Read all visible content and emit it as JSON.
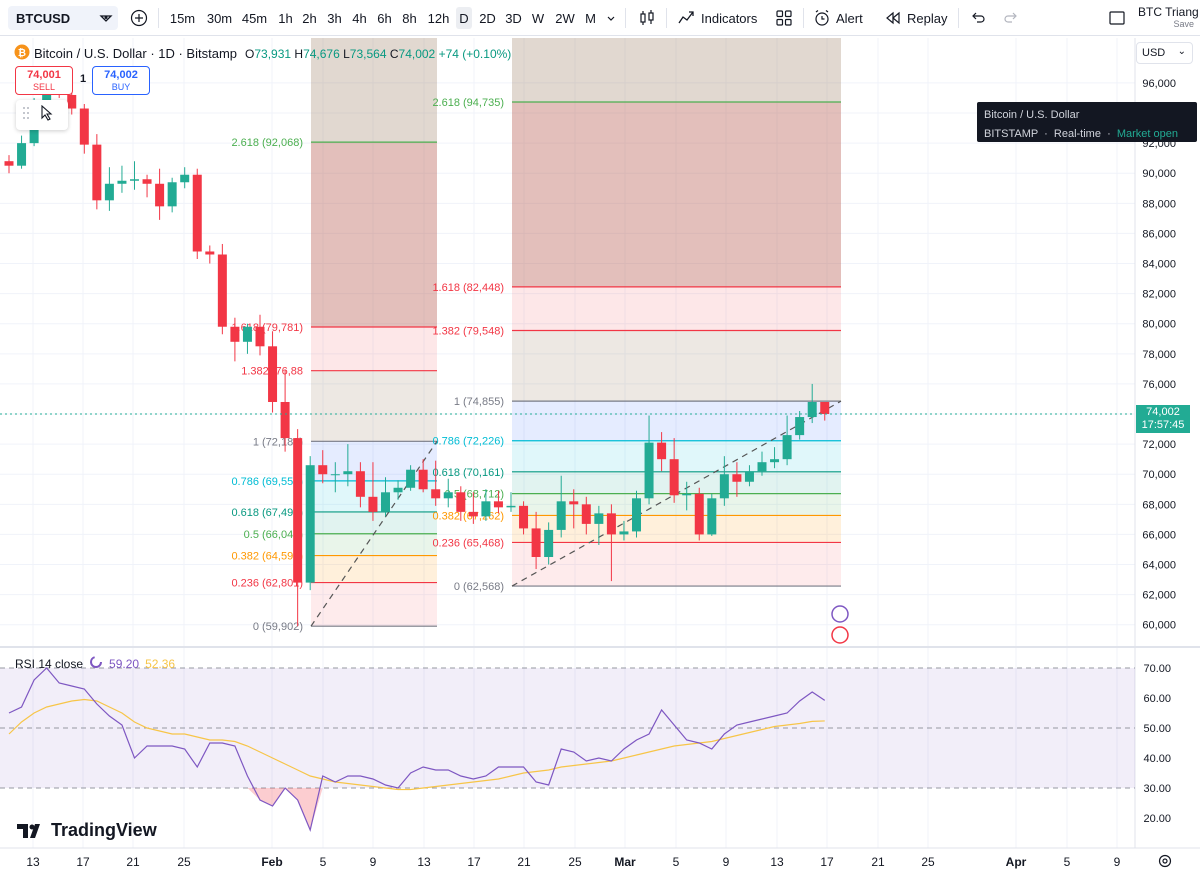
{
  "toolbar": {
    "symbol": "BTCUSD",
    "intervals": [
      "15m",
      "30m",
      "45m",
      "1h",
      "2h",
      "3h",
      "4h",
      "6h",
      "8h",
      "12h",
      "D",
      "2D",
      "3D",
      "W",
      "2W",
      "M"
    ],
    "active_interval": "D",
    "indicators_label": "Indicators",
    "alert_label": "Alert",
    "replay_label": "Replay",
    "layout_name": "BTC Triang",
    "save_label": "Save"
  },
  "legend": {
    "title": "Bitcoin / U.S. Dollar · 1D · Bitstamp",
    "o_label": "O",
    "o_value": "73,931",
    "h_label": "H",
    "h_value": "74,676",
    "l_label": "L",
    "l_value": "73,564",
    "c_label": "C",
    "c_value": "74,002",
    "change": "+74 (+0.10%)"
  },
  "trade": {
    "sell_price": "74,001",
    "sell_label": "SELL",
    "buy_price": "74,002",
    "buy_label": "BUY",
    "qty": "1"
  },
  "tooltip": {
    "line1": "Bitcoin / U.S. Dollar",
    "exchange": "BITSTAMP",
    "feed": "Real-time",
    "status": "Market open"
  },
  "currency": "USD",
  "last_price": {
    "price": "74,002",
    "countdown": "17:57:45"
  },
  "price_axis": [
    "96,000",
    "94,000",
    "92,000",
    "90,000",
    "88,000",
    "86,000",
    "84,000",
    "82,000",
    "80,000",
    "78,000",
    "76,000",
    "72,000",
    "70,000",
    "68,000",
    "66,000",
    "64,000",
    "62,000",
    "60,000"
  ],
  "rsi": {
    "label": "RSI 14 close",
    "value1": "59.20",
    "value2": "52.36",
    "axis": [
      "70.00",
      "60.00",
      "50.00",
      "40.00",
      "30.00",
      "20.00"
    ]
  },
  "time_axis": [
    "13",
    "17",
    "21",
    "25",
    "Feb",
    "5",
    "9",
    "13",
    "17",
    "21",
    "25",
    "Mar",
    "5",
    "9",
    "13",
    "17",
    "21",
    "25",
    "Apr",
    "5",
    "9"
  ],
  "brand": "TradingView",
  "fib1": {
    "levels": [
      {
        "label": "2.618 (92,068)",
        "price": 92068,
        "color": "#4caf50"
      },
      {
        "label": "1.618 (79,781)",
        "price": 79781,
        "color": "#f23645"
      },
      {
        "label": "1.382 (76,88",
        "price": 76880,
        "color": "#f23645"
      },
      {
        "label": "1 (72,188)",
        "price": 72188,
        "color": "#787b86"
      },
      {
        "label": "0.786 (69,559)",
        "price": 69559,
        "color": "#00bcd4"
      },
      {
        "label": "0.618 (67,495)",
        "price": 67495,
        "color": "#089981"
      },
      {
        "label": "0.5 (66,045)",
        "price": 66045,
        "color": "#4caf50"
      },
      {
        "label": "0.382 (64,595)",
        "price": 64595,
        "color": "#ff9800"
      },
      {
        "label": "0.236 (62,801)",
        "price": 62801,
        "color": "#f23645"
      },
      {
        "label": "0 (59,902)",
        "price": 59902,
        "color": "#787b86"
      }
    ]
  },
  "fib2": {
    "levels": [
      {
        "label": "2.618 (94,735)",
        "price": 94735,
        "color": "#4caf50"
      },
      {
        "label": "1.618 (82,448)",
        "price": 82448,
        "color": "#f23645"
      },
      {
        "label": "1.382 (79,548)",
        "price": 79548,
        "color": "#f23645"
      },
      {
        "label": "1 (74,855)",
        "price": 74855,
        "color": "#787b86"
      },
      {
        "label": "0.786 (72,226)",
        "price": 72226,
        "color": "#00bcd4"
      },
      {
        "label": "0.618 (70,161)",
        "price": 70161,
        "color": "#089981"
      },
      {
        "label": "0.5 (68,712)",
        "price": 68712,
        "color": "#4caf50"
      },
      {
        "label": "0.382 (67,262)",
        "price": 67262,
        "color": "#ff9800"
      },
      {
        "label": "0.236 (65,468)",
        "price": 65468,
        "color": "#f23645"
      },
      {
        "label": "0 (62,568)",
        "price": 62568,
        "color": "#787b86"
      }
    ]
  },
  "chart_data": {
    "type": "candlestick",
    "x": [
      "Jan 11",
      "Jan 12",
      "Jan 13",
      "Jan 14",
      "Jan 15",
      "Jan 16",
      "Jan 17",
      "Jan 18",
      "Jan 19",
      "Jan 20",
      "Jan 21",
      "Jan 22",
      "Jan 23",
      "Jan 24",
      "Jan 25",
      "Jan 26",
      "Jan 27",
      "Jan 28",
      "Jan 29",
      "Jan 30",
      "Jan 31",
      "Feb 1",
      "Feb 2",
      "Feb 3",
      "Feb 4",
      "Feb 5",
      "Feb 6",
      "Feb 7",
      "Feb 8",
      "Feb 9",
      "Feb 10",
      "Feb 11",
      "Feb 12",
      "Feb 13",
      "Feb 14",
      "Feb 15",
      "Feb 16",
      "Feb 17",
      "Feb 18",
      "Feb 19",
      "Feb 20",
      "Feb 21",
      "Feb 22",
      "Feb 23",
      "Feb 24",
      "Feb 25",
      "Feb 26",
      "Feb 27",
      "Feb 28",
      "Mar 1",
      "Mar 2",
      "Mar 3",
      "Mar 4",
      "Mar 5",
      "Mar 6",
      "Mar 7",
      "Mar 8",
      "Mar 9",
      "Mar 10",
      "Mar 11",
      "Mar 12",
      "Mar 13",
      "Mar 14",
      "Mar 15",
      "Mar 16",
      "Mar 17"
    ],
    "open": [
      90800,
      90500,
      92000,
      94200,
      95800,
      95200,
      94300,
      91900,
      88200,
      89300,
      89500,
      89600,
      89300,
      87800,
      89400,
      89900,
      84800,
      84600,
      79800,
      78800,
      79800,
      78500,
      74800,
      72400,
      62800,
      70600,
      70000,
      70000,
      70200,
      68500,
      67500,
      68800,
      69100,
      70300,
      69000,
      68400,
      68800,
      67500,
      67200,
      68200,
      67800,
      67900,
      66400,
      64500,
      66300,
      68200,
      68000,
      66700,
      67400,
      66000,
      66200,
      68400,
      72100,
      71000,
      68600,
      68700,
      66000,
      68400,
      70000,
      69500,
      70200,
      70800,
      71000,
      72600,
      73800,
      74800
    ],
    "close": [
      90500,
      92000,
      94200,
      95800,
      95200,
      94300,
      91900,
      88200,
      89300,
      89500,
      89600,
      89300,
      87800,
      89400,
      89900,
      84800,
      84600,
      79800,
      78800,
      79800,
      78500,
      74800,
      72400,
      62800,
      70600,
      70000,
      70000,
      70200,
      68500,
      67500,
      68800,
      69100,
      70300,
      69000,
      68400,
      68800,
      67500,
      67200,
      68200,
      67800,
      67900,
      66400,
      64500,
      66300,
      68200,
      68000,
      66700,
      67400,
      66000,
      66200,
      68400,
      72100,
      71000,
      68600,
      68700,
      66000,
      68400,
      70000,
      69500,
      70200,
      70800,
      71000,
      72600,
      73800,
      74800,
      74002
    ],
    "high": [
      91200,
      92500,
      95000,
      96300,
      96200,
      95700,
      94600,
      92600,
      90400,
      90500,
      90800,
      89900,
      90300,
      89700,
      90400,
      90300,
      85200,
      85300,
      80400,
      80000,
      80600,
      79500,
      76900,
      73000,
      71200,
      71600,
      70800,
      72000,
      70800,
      70800,
      69800,
      69600,
      70600,
      71000,
      70900,
      69700,
      69200,
      68800,
      69000,
      68900,
      68800,
      68200,
      67500,
      66800,
      69900,
      69000,
      68500,
      67900,
      68000,
      66900,
      68900,
      73900,
      72800,
      72400,
      69500,
      69100,
      68700,
      71200,
      70800,
      70600,
      71500,
      71800,
      73900,
      74200,
      76000,
      74676
    ],
    "low": [
      90000,
      90300,
      91800,
      93800,
      95000,
      93900,
      91300,
      87600,
      87500,
      88700,
      88900,
      88400,
      86900,
      87400,
      89000,
      84300,
      84000,
      79300,
      77500,
      78000,
      77900,
      74100,
      71500,
      59902,
      62300,
      69400,
      68800,
      69200,
      67800,
      66900,
      67200,
      68300,
      68900,
      68800,
      67900,
      67800,
      66900,
      66700,
      66900,
      67400,
      67500,
      66000,
      63700,
      64000,
      65800,
      66400,
      66000,
      65300,
      62900,
      65600,
      65800,
      68000,
      70200,
      68100,
      67600,
      65600,
      65900,
      67900,
      68500,
      69200,
      69900,
      70400,
      70600,
      72300,
      73400,
      73564
    ]
  }
}
